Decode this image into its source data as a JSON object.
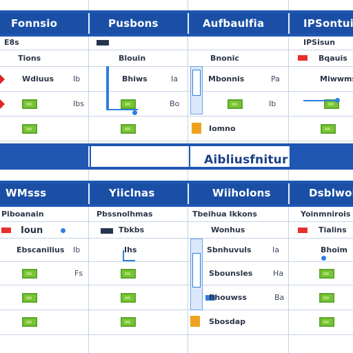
{
  "top_headers": [
    {
      "label": "Fonnsio"
    },
    {
      "label": "Pusbons"
    },
    {
      "label": "Aufbaulfia"
    },
    {
      "label": "IPSontuis"
    }
  ],
  "top_subrows": [
    {
      "a": "E8s",
      "b": "",
      "c": "",
      "d": "IPSisun"
    },
    {
      "a": "Tions",
      "b": "Blouin",
      "c": "Bnonic",
      "d": "Bqauis"
    },
    {
      "a": "Wdiuus",
      "b": "Bhiws",
      "c": "Mbonnis",
      "d": "Miwwms"
    },
    {
      "a": "",
      "b": "",
      "c": "",
      "d": ""
    },
    {
      "a": "",
      "b": "",
      "c": "Iomno",
      "d": ""
    }
  ],
  "right_values": [
    "Ib",
    "Ia",
    "Pa",
    "Ibs",
    "Bo",
    "Ib"
  ],
  "center_banner": "Aibliusfnitur",
  "bottom_headers": [
    {
      "label": "WMsss"
    },
    {
      "label": "Yiiclnas"
    },
    {
      "label": "Wiiholons"
    },
    {
      "label": "Dsblwolrs"
    }
  ],
  "bottom_subrows": [
    {
      "a": "Piboanain",
      "b": "Pbssnolhmas",
      "c": "Tbeihua Ikkons",
      "d": "Yoinmnirois"
    },
    {
      "a": "Ioun",
      "b": "Tbkbs",
      "c": "Wonhus",
      "d": "Tialins"
    },
    {
      "a": "Ebscanilius",
      "b": "Ihs",
      "c": "Sbnhuvuls",
      "d": "Bhoim"
    },
    {
      "a": "",
      "b": "",
      "c": "Sbounsles",
      "d": ""
    },
    {
      "a": "",
      "b": "",
      "c": "Bhouwss",
      "d": ""
    },
    {
      "a": "",
      "b": "",
      "c": "Sbosdap",
      "d": ""
    }
  ],
  "bottom_right_values": [
    "Ib",
    "Ia",
    "Fs",
    "Ha",
    "Ba"
  ],
  "colors": {
    "header_blue": "#1f57b3",
    "accent_green": "#79c435",
    "accent_orange": "#f0a21e",
    "accent_red": "#e02626",
    "line_blue": "#2f7fdc"
  }
}
